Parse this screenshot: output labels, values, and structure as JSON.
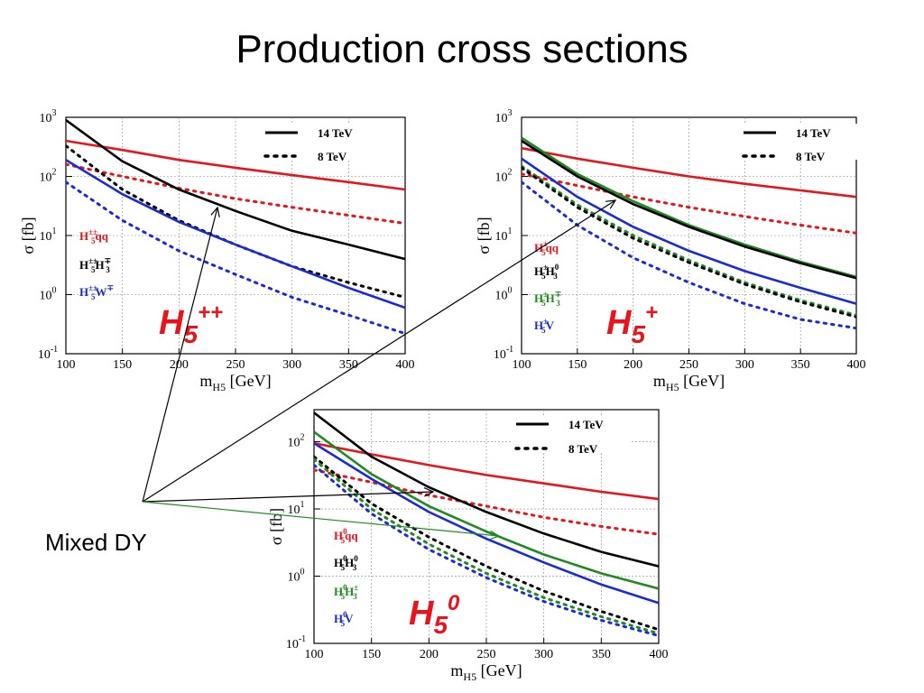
{
  "title": "Production cross sections",
  "mixed_label": "Mixed DY",
  "colors": {
    "red": "#e8141b",
    "black": "#000000",
    "blue": "#1a2bd6",
    "green": "#1f8a1f"
  },
  "chart_data": [
    {
      "type": "line",
      "panel": "H5++",
      "label_main": "H",
      "label_sub": "5",
      "label_sup": "++",
      "xlabel_main": "m",
      "xlabel_sub": "H5",
      "xlabel_unit": "[GeV]",
      "ylabel": "σ [fb]",
      "xlim": [
        100,
        400
      ],
      "ylim": [
        0.1,
        1000
      ],
      "yscale": "log",
      "grid": true,
      "xticks": [
        "100",
        "150",
        "200",
        "250",
        "300",
        "350",
        "400"
      ],
      "yticks": [
        {
          "base": "10",
          "exp": "-1"
        },
        {
          "base": "10",
          "exp": "0"
        },
        {
          "base": "10",
          "exp": "1"
        },
        {
          "base": "10",
          "exp": "2"
        },
        {
          "base": "10",
          "exp": "3"
        }
      ],
      "legend": [
        "14 TeV",
        "8 TeV"
      ],
      "processes": [
        {
          "text": "H",
          "sup": "±±",
          "sub": "5",
          "tail": "qq",
          "color": "red"
        },
        {
          "text": "H",
          "sup": "±±",
          "sub": "5",
          "tail": "H",
          "sup2": "∓",
          "sub2": "3",
          "color": "black"
        },
        {
          "text": "H",
          "sup": "±±",
          "sub": "5",
          "tail": "W",
          "sup2": "∓",
          "color": "blue"
        }
      ],
      "series": [
        {
          "color": "red",
          "energy": "14 TeV",
          "x": [
            100,
            150,
            200,
            250,
            300,
            350,
            400
          ],
          "y": [
            400,
            280,
            190,
            140,
            105,
            80,
            60
          ]
        },
        {
          "color": "red",
          "energy": "8 TeV",
          "x": [
            100,
            150,
            200,
            250,
            300,
            350,
            400
          ],
          "y": [
            160,
            100,
            63,
            42,
            30,
            22,
            16
          ]
        },
        {
          "color": "black",
          "energy": "14 TeV",
          "x": [
            100,
            150,
            200,
            250,
            300,
            350,
            400
          ],
          "y": [
            900,
            180,
            60,
            26,
            12,
            7,
            4
          ]
        },
        {
          "color": "black",
          "energy": "8 TeV",
          "x": [
            100,
            150,
            200,
            250,
            300,
            350,
            400
          ],
          "y": [
            330,
            60,
            18,
            7,
            3,
            1.6,
            0.9
          ]
        },
        {
          "color": "blue",
          "energy": "14 TeV",
          "x": [
            100,
            150,
            200,
            250,
            300,
            350,
            400
          ],
          "y": [
            190,
            50,
            17,
            7,
            3,
            1.3,
            0.6
          ]
        },
        {
          "color": "blue",
          "energy": "8 TeV",
          "x": [
            100,
            150,
            200,
            250,
            300,
            350,
            400
          ],
          "y": [
            80,
            18,
            5.5,
            2.2,
            0.9,
            0.45,
            0.22
          ]
        }
      ]
    },
    {
      "type": "line",
      "panel": "H5+",
      "label_main": "H",
      "label_sub": "5",
      "label_sup": "+",
      "xlabel_main": "m",
      "xlabel_sub": "H5",
      "xlabel_unit": "[GeV]",
      "ylabel": "σ [fb]",
      "xlim": [
        100,
        400
      ],
      "ylim": [
        0.1,
        1000
      ],
      "yscale": "log",
      "grid": true,
      "xticks": [
        "100",
        "150",
        "200",
        "250",
        "300",
        "350",
        "400"
      ],
      "yticks": [
        {
          "base": "10",
          "exp": "-1"
        },
        {
          "base": "10",
          "exp": "0"
        },
        {
          "base": "10",
          "exp": "1"
        },
        {
          "base": "10",
          "exp": "2"
        },
        {
          "base": "10",
          "exp": "3"
        }
      ],
      "legend": [
        "14 TeV",
        "8 TeV"
      ],
      "processes": [
        {
          "text": "H",
          "sup": "±",
          "sub": "5",
          "tail": "qq",
          "color": "red"
        },
        {
          "text": "H",
          "sup": "±",
          "sub": "5",
          "tail": "H",
          "sup2": "0",
          "sub2": "3",
          "color": "black"
        },
        {
          "text": "H",
          "sup": "±",
          "sub": "5",
          "tail": "H",
          "sup2": "∓",
          "sub2": "3",
          "color": "green"
        },
        {
          "text": "H",
          "sup": "±",
          "sub": "5",
          "tail": "V",
          "color": "blue"
        }
      ],
      "series": [
        {
          "color": "red",
          "energy": "14 TeV",
          "x": [
            100,
            150,
            200,
            250,
            300,
            350,
            400
          ],
          "y": [
            300,
            200,
            140,
            100,
            75,
            58,
            45
          ]
        },
        {
          "color": "red",
          "energy": "8 TeV",
          "x": [
            100,
            150,
            200,
            250,
            300,
            350,
            400
          ],
          "y": [
            110,
            70,
            45,
            30,
            21,
            15,
            11
          ]
        },
        {
          "color": "green",
          "energy": "14 TeV",
          "x": [
            100,
            150,
            200,
            250,
            300,
            350,
            400
          ],
          "y": [
            450,
            110,
            38,
            15,
            7,
            3.6,
            2
          ]
        },
        {
          "color": "black",
          "energy": "14 TeV",
          "x": [
            100,
            150,
            200,
            250,
            300,
            350,
            400
          ],
          "y": [
            400,
            100,
            34,
            14,
            6.5,
            3.4,
            1.9
          ]
        },
        {
          "color": "green",
          "energy": "8 TeV",
          "x": [
            100,
            150,
            200,
            250,
            300,
            350,
            400
          ],
          "y": [
            150,
            33,
            10,
            3.8,
            1.6,
            0.8,
            0.45
          ]
        },
        {
          "color": "black",
          "energy": "8 TeV",
          "x": [
            100,
            150,
            200,
            250,
            300,
            350,
            400
          ],
          "y": [
            140,
            30,
            9,
            3.5,
            1.5,
            0.75,
            0.42
          ]
        },
        {
          "color": "blue",
          "energy": "14 TeV",
          "x": [
            100,
            150,
            200,
            250,
            300,
            350,
            400
          ],
          "y": [
            200,
            45,
            14,
            5.5,
            2.5,
            1.3,
            0.7
          ]
        },
        {
          "color": "blue",
          "energy": "8 TeV",
          "x": [
            100,
            150,
            200,
            250,
            300,
            350,
            400
          ],
          "y": [
            80,
            15,
            4.2,
            1.6,
            0.7,
            0.38,
            0.27
          ]
        }
      ]
    },
    {
      "type": "line",
      "panel": "H50",
      "label_main": "H",
      "label_sub": "5",
      "label_sup": "0",
      "xlabel_main": "m",
      "xlabel_sub": "H5",
      "xlabel_unit": "[GeV]",
      "ylabel": "σ [fb]",
      "xlim": [
        100,
        400
      ],
      "ylim": [
        0.1,
        300
      ],
      "yscale": "log",
      "grid": true,
      "xticks": [
        "100",
        "150",
        "200",
        "250",
        "300",
        "350",
        "400"
      ],
      "yticks": [
        {
          "base": "10",
          "exp": "-1"
        },
        {
          "base": "10",
          "exp": "0"
        },
        {
          "base": "10",
          "exp": "1"
        },
        {
          "base": "10",
          "exp": "2"
        }
      ],
      "legend": [
        "14 TeV",
        "8 TeV"
      ],
      "processes": [
        {
          "text": "H",
          "sup": "0",
          "sub": "5",
          "tail": "qq",
          "color": "red"
        },
        {
          "text": "H",
          "sup": "0",
          "sub": "5",
          "tail": "H",
          "sup2": "0",
          "sub2": "3",
          "color": "black"
        },
        {
          "text": "H",
          "sup": "0",
          "sub": "5",
          "tail": "H",
          "sup2": "±",
          "sub2": "3",
          "color": "green"
        },
        {
          "text": "H",
          "sup": "0",
          "sub": "5",
          "tail": "V",
          "color": "blue"
        }
      ],
      "series": [
        {
          "color": "red",
          "energy": "14 TeV",
          "x": [
            100,
            150,
            200,
            250,
            300,
            350,
            400
          ],
          "y": [
            95,
            65,
            45,
            32,
            24,
            18,
            14
          ]
        },
        {
          "color": "red",
          "energy": "8 TeV",
          "x": [
            100,
            150,
            200,
            250,
            300,
            350,
            400
          ],
          "y": [
            38,
            25,
            16,
            11,
            7.5,
            5.5,
            4.2
          ]
        },
        {
          "color": "black",
          "energy": "14 TeV",
          "x": [
            100,
            150,
            200,
            250,
            300,
            350,
            400
          ],
          "y": [
            270,
            60,
            21,
            9,
            4.3,
            2.3,
            1.4
          ]
        },
        {
          "color": "black",
          "energy": "8 TeV",
          "x": [
            100,
            150,
            200,
            250,
            300,
            350,
            400
          ],
          "y": [
            60,
            12,
            3.8,
            1.4,
            0.6,
            0.3,
            0.16
          ]
        },
        {
          "color": "green",
          "energy": "14 TeV",
          "x": [
            100,
            150,
            200,
            250,
            300,
            350,
            400
          ],
          "y": [
            140,
            33,
            11,
            4.6,
            2.1,
            1.1,
            0.65
          ]
        },
        {
          "color": "green",
          "energy": "8 TeV",
          "x": [
            100,
            150,
            200,
            250,
            300,
            350,
            400
          ],
          "y": [
            55,
            10,
            3,
            1.1,
            0.48,
            0.25,
            0.14
          ]
        },
        {
          "color": "blue",
          "energy": "14 TeV",
          "x": [
            100,
            150,
            200,
            250,
            300,
            350,
            400
          ],
          "y": [
            95,
            28,
            9,
            3.6,
            1.6,
            0.75,
            0.4
          ]
        },
        {
          "color": "blue",
          "energy": "8 TeV",
          "x": [
            100,
            150,
            200,
            250,
            300,
            350,
            400
          ],
          "y": [
            45,
            8.5,
            2.5,
            0.95,
            0.42,
            0.22,
            0.13
          ]
        }
      ]
    }
  ]
}
